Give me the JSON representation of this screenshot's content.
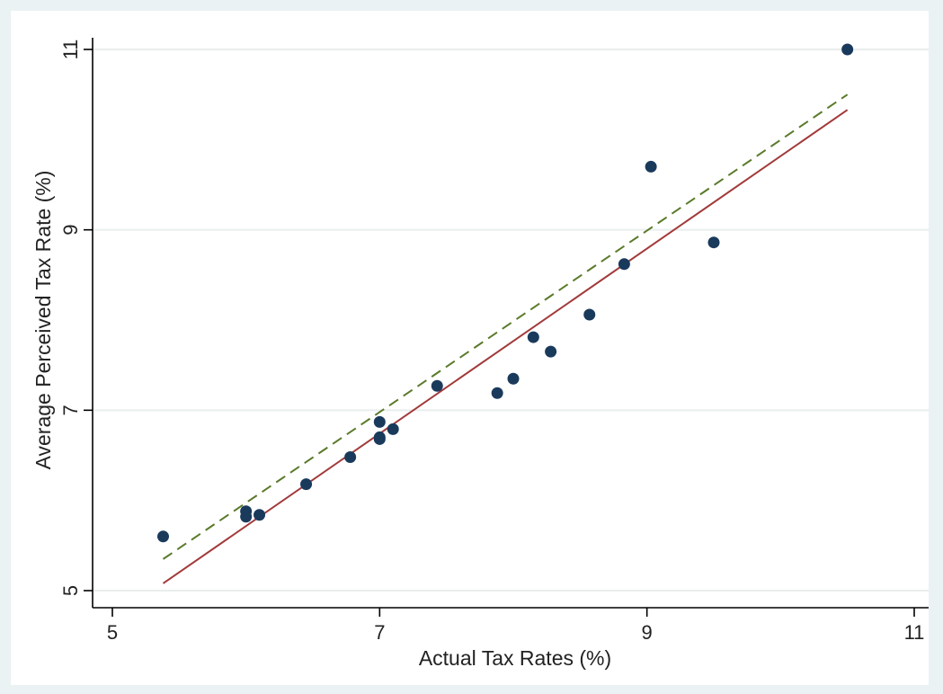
{
  "chart_data": {
    "type": "scatter",
    "xlabel": "Actual Tax Rates (%)",
    "ylabel": "Average Perceived Tax Rate (%)",
    "xlim": [
      5,
      11
    ],
    "ylim": [
      5,
      11
    ],
    "xticks": [
      5,
      7,
      9,
      11
    ],
    "yticks": [
      5,
      7,
      9,
      11
    ],
    "grid": "horizontal",
    "legend": "none",
    "series": [
      {
        "type": "scatter",
        "color": "#1a3a5c",
        "x": [
          5.38,
          6.0,
          6.0,
          6.1,
          6.45,
          6.78,
          7.0,
          7.0,
          7.0,
          7.1,
          7.43,
          7.88,
          8.0,
          8.15,
          8.28,
          8.57,
          8.83,
          9.03,
          9.5,
          10.5
        ],
        "y": [
          5.6,
          5.88,
          5.82,
          5.84,
          6.18,
          6.48,
          6.87,
          6.7,
          6.68,
          6.79,
          7.27,
          7.19,
          7.35,
          7.81,
          7.65,
          8.06,
          8.62,
          9.7,
          8.86,
          11.0
        ]
      },
      {
        "type": "line",
        "style": "solid",
        "color": "#a23a3a",
        "x": [
          5.38,
          10.5
        ],
        "y": [
          5.08,
          10.33
        ]
      },
      {
        "type": "line",
        "style": "dashed",
        "color": "#5a7a2a",
        "x": [
          5.38,
          10.5
        ],
        "y": [
          5.35,
          10.5
        ]
      }
    ]
  },
  "colors": {
    "background": "#eaf2f3",
    "plot_background": "#ffffff",
    "grid": "#e9eeee",
    "axis": "#000000"
  }
}
